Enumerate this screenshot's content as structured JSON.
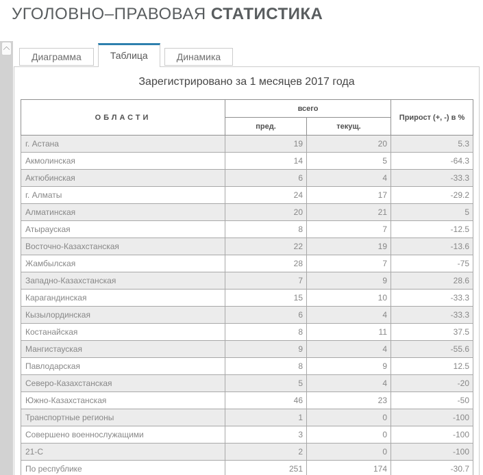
{
  "heading": {
    "regular": "УГОЛОВНО–ПРАВОВАЯ ",
    "bold": "СТАТИСТИКА"
  },
  "tabs": [
    {
      "label": "Диаграмма",
      "active": false
    },
    {
      "label": "Таблица",
      "active": true
    },
    {
      "label": "Динамика",
      "active": false
    }
  ],
  "scrollbar": {
    "up_icon": "chevron-up"
  },
  "colors": {
    "accent_tab": "#2e80ae",
    "row_alt_background": "#ececec",
    "table_border": "#a8a8a8",
    "heading_text": "#595d5f"
  },
  "table": {
    "caption": "Зарегистрировано за 1 месяцев 2017 года",
    "headers": {
      "regions": "ОБЛАСТИ",
      "total": "всего",
      "prev": "пред.",
      "curr": "текущ.",
      "growth": "Прирост (+, -) в %"
    },
    "rows": [
      {
        "region": "г. Астана",
        "prev": "19",
        "curr": "20",
        "growth": "5.3"
      },
      {
        "region": "Акмолинская",
        "prev": "14",
        "curr": "5",
        "growth": "-64.3"
      },
      {
        "region": "Актюбинская",
        "prev": "6",
        "curr": "4",
        "growth": "-33.3"
      },
      {
        "region": "г. Алматы",
        "prev": "24",
        "curr": "17",
        "growth": "-29.2"
      },
      {
        "region": "Алматинская",
        "prev": "20",
        "curr": "21",
        "growth": "5"
      },
      {
        "region": "Атырауская",
        "prev": "8",
        "curr": "7",
        "growth": "-12.5"
      },
      {
        "region": "Восточно-Казахстанская",
        "prev": "22",
        "curr": "19",
        "growth": "-13.6"
      },
      {
        "region": "Жамбылская",
        "prev": "28",
        "curr": "7",
        "growth": "-75"
      },
      {
        "region": "Западно-Казахстанская",
        "prev": "7",
        "curr": "9",
        "growth": "28.6"
      },
      {
        "region": "Карагандинская",
        "prev": "15",
        "curr": "10",
        "growth": "-33.3"
      },
      {
        "region": "Кызылординская",
        "prev": "6",
        "curr": "4",
        "growth": "-33.3"
      },
      {
        "region": "Костанайская",
        "prev": "8",
        "curr": "11",
        "growth": "37.5"
      },
      {
        "region": "Мангистауская",
        "prev": "9",
        "curr": "4",
        "growth": "-55.6"
      },
      {
        "region": "Павлодарская",
        "prev": "8",
        "curr": "9",
        "growth": "12.5"
      },
      {
        "region": "Северо-Казахстанская",
        "prev": "5",
        "curr": "4",
        "growth": "-20"
      },
      {
        "region": "Южно-Казахстанская",
        "prev": "46",
        "curr": "23",
        "growth": "-50"
      },
      {
        "region": "Транспортные регионы",
        "prev": "1",
        "curr": "0",
        "growth": "-100"
      },
      {
        "region": "Совершено военнослужащими",
        "prev": "3",
        "curr": "0",
        "growth": "-100"
      },
      {
        "region": "21-С",
        "prev": "2",
        "curr": "0",
        "growth": "-100"
      },
      {
        "region": "По республике",
        "prev": "251",
        "curr": "174",
        "growth": "-30.7"
      }
    ]
  }
}
